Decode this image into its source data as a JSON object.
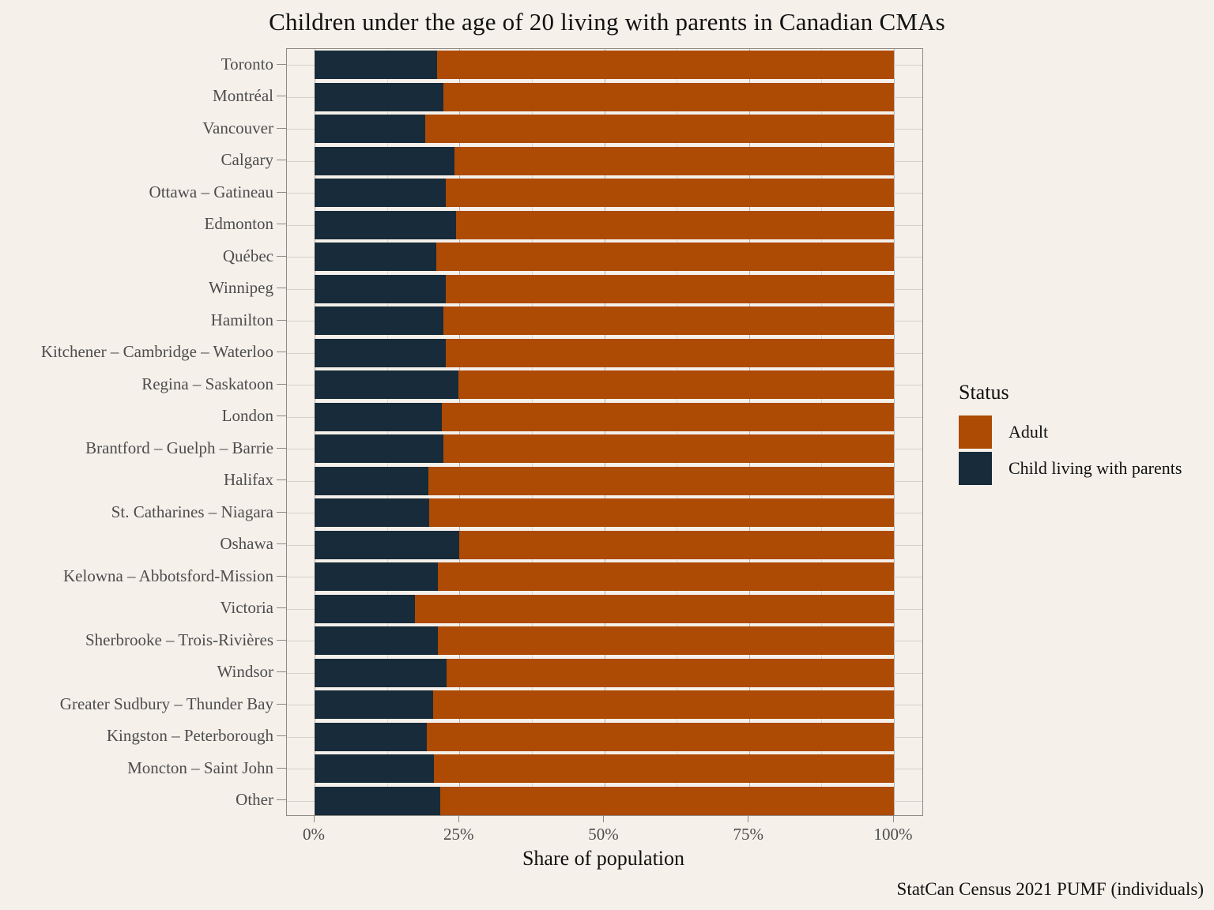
{
  "title": "Children under the age of 20 living with parents in Canadian CMAs",
  "caption": "StatCan Census 2021 PUMF (individuals)",
  "axes": {
    "x_label": "Share of population",
    "x_tick_labels": [
      "0%",
      "25%",
      "50%",
      "75%",
      "100%"
    ]
  },
  "legend": {
    "title": "Status",
    "items": [
      {
        "label": "Adult",
        "color": "#ad4a04"
      },
      {
        "label": "Child living with parents",
        "color": "#172b3a"
      }
    ]
  },
  "colors": {
    "background": "#f5f0ea",
    "adult": "#ad4a04",
    "child": "#172b3a",
    "grid_major": "#b7b2ab",
    "grid_minor": "#ddd8d2",
    "panel_border": "#8e8982",
    "axis_text": "#4d4d4d",
    "text": "#111111"
  },
  "chart_data": {
    "type": "bar",
    "orientation": "horizontal",
    "stacked": true,
    "unit": "percent",
    "title": "Children under the age of 20 living with parents in Canadian CMAs",
    "xlabel": "Share of population",
    "ylabel": "",
    "xlim": [
      0,
      100
    ],
    "x_major_ticks": [
      0,
      25,
      50,
      75,
      100
    ],
    "x_minor_ticks": [
      12.5,
      37.5,
      62.5,
      87.5
    ],
    "grid": true,
    "legend_position": "right",
    "categories": [
      "Toronto",
      "Montréal",
      "Vancouver",
      "Calgary",
      "Ottawa – Gatineau",
      "Edmonton",
      "Québec",
      "Winnipeg",
      "Hamilton",
      "Kitchener – Cambridge – Waterloo",
      "Regina – Saskatoon",
      "London",
      "Brantford – Guelph – Barrie",
      "Halifax",
      "St. Catharines – Niagara",
      "Oshawa",
      "Kelowna – Abbotsford-Mission",
      "Victoria",
      "Sherbrooke – Trois-Rivières",
      "Windsor",
      "Greater Sudbury – Thunder Bay",
      "Kingston – Peterborough",
      "Moncton – Saint John",
      "Other"
    ],
    "series": [
      {
        "name": "Child living with parents",
        "values": [
          21.1,
          22.2,
          19.1,
          24.2,
          22.7,
          24.4,
          21.0,
          22.6,
          22.2,
          22.6,
          24.8,
          21.9,
          22.3,
          19.7,
          19.8,
          24.9,
          21.3,
          17.3,
          21.3,
          22.8,
          20.4,
          19.4,
          20.6,
          21.7
        ]
      },
      {
        "name": "Adult",
        "values": [
          78.9,
          77.8,
          80.9,
          75.8,
          77.3,
          75.6,
          79.0,
          77.4,
          77.8,
          77.4,
          75.2,
          78.1,
          77.7,
          80.3,
          80.2,
          75.1,
          78.7,
          82.7,
          78.7,
          77.2,
          79.6,
          80.6,
          79.4,
          78.3
        ]
      }
    ]
  }
}
